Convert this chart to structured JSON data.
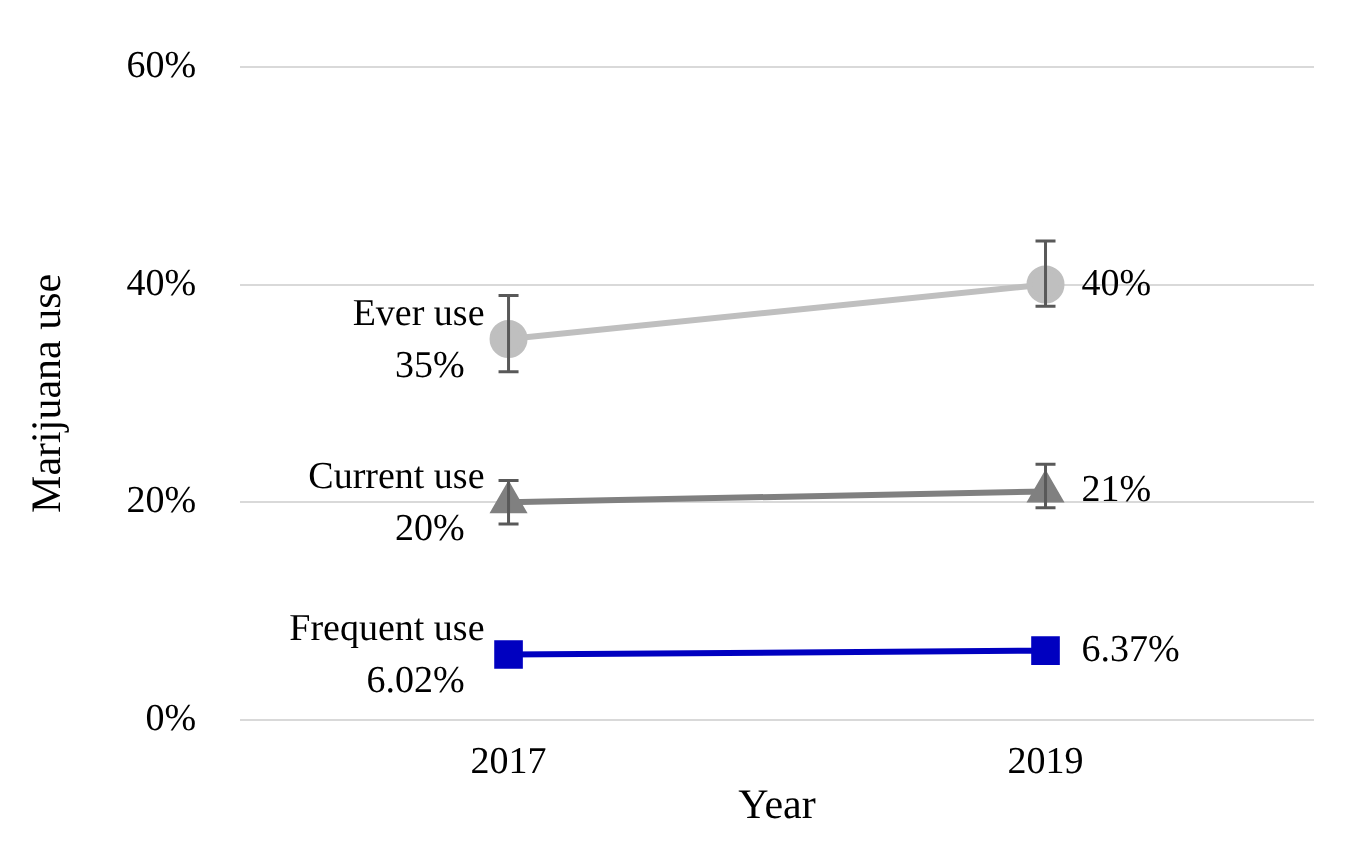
{
  "chart_data": {
    "type": "line",
    "xlabel": "Year",
    "ylabel": "Marijuana use",
    "categories": [
      "2017",
      "2019"
    ],
    "ylim": [
      0,
      60
    ],
    "yticks": [
      {
        "value": 0,
        "label": "0%"
      },
      {
        "value": 20,
        "label": "20%"
      },
      {
        "value": 40,
        "label": "40%"
      },
      {
        "value": 60,
        "label": "60%"
      }
    ],
    "grid": "y",
    "legend": false,
    "series": [
      {
        "name": "Ever use",
        "color": "#bfbfbf",
        "marker": "circle",
        "values": [
          35,
          40
        ],
        "errors": [
          [
            32,
            39
          ],
          [
            38,
            44
          ]
        ],
        "value_labels": [
          "35%",
          "40%"
        ]
      },
      {
        "name": "Current use",
        "color": "#808080",
        "marker": "triangle",
        "values": [
          20,
          21
        ],
        "errors": [
          [
            18,
            22
          ],
          [
            19.5,
            23.5
          ]
        ],
        "value_labels": [
          "20%",
          "21%"
        ]
      },
      {
        "name": "Frequent use",
        "color": "#0000c0",
        "marker": "square",
        "values": [
          6.02,
          6.37
        ],
        "value_labels": [
          "6.02%",
          "6.37%"
        ]
      }
    ]
  }
}
